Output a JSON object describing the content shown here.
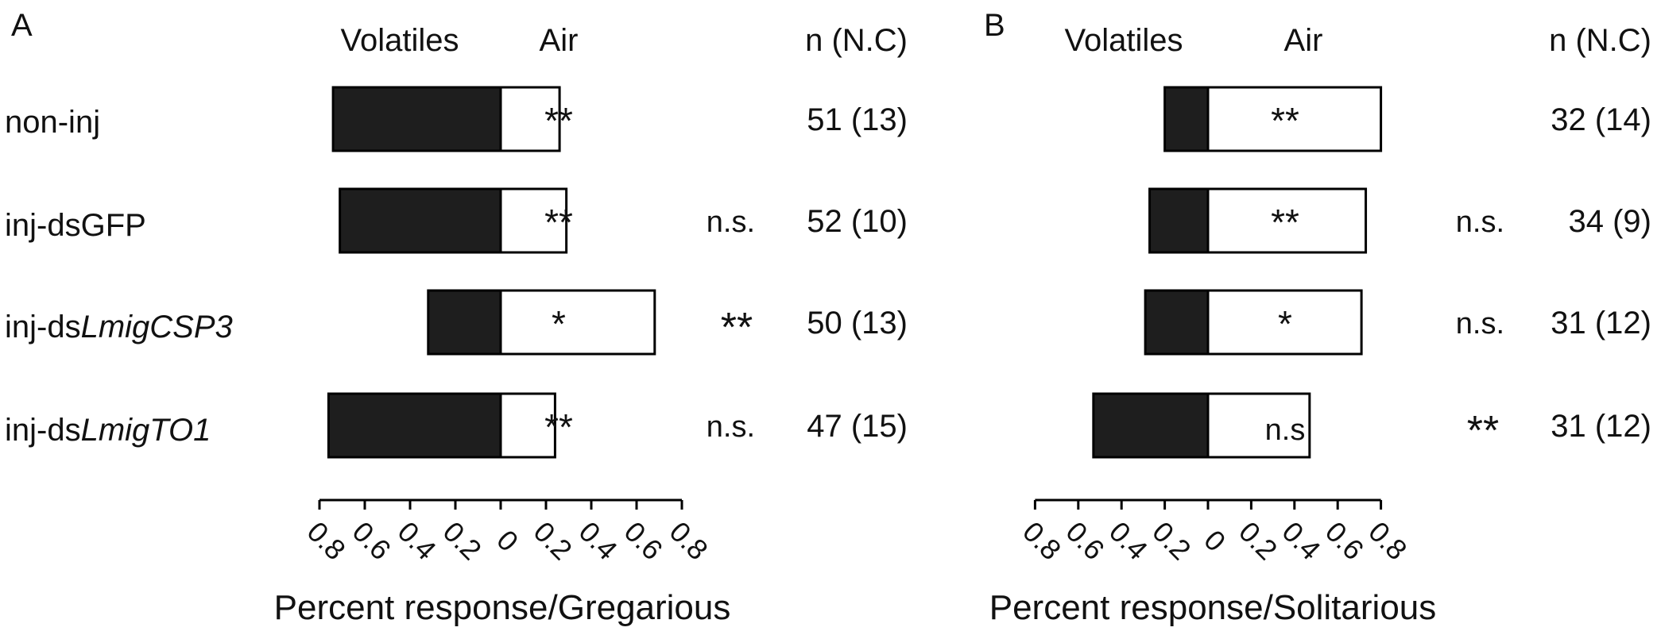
{
  "chart_data": [
    {
      "type": "bar",
      "panel_label": "A",
      "categories": [
        "non-inj",
        "inj-dsGFP",
        "inj-dsLmigCSP3",
        "inj-dsLmigTO1"
      ],
      "category_parts": [
        {
          "plain": "non-inj",
          "italic": ""
        },
        {
          "plain": "inj-dsGFP",
          "italic": ""
        },
        {
          "plain": "inj-ds",
          "italic": "LmigCSP3"
        },
        {
          "plain": "inj-ds",
          "italic": "LmigTO1"
        }
      ],
      "series": [
        {
          "name": "Volatiles",
          "values": [
            0.74,
            0.71,
            0.32,
            0.76
          ]
        },
        {
          "name": "Air",
          "values": [
            0.26,
            0.29,
            0.68,
            0.24
          ]
        }
      ],
      "bar_significance": [
        "**",
        "**",
        "*",
        "**"
      ],
      "group_comparison": [
        "",
        "n.s.",
        "**",
        "n.s."
      ],
      "n_values": [
        "51 (13)",
        "52 (10)",
        "50 (13)",
        "47 (15)"
      ],
      "header_left": "Volatiles",
      "header_right": "Air",
      "header_n": "n (N.C)",
      "xlabel": "Percent response/Gregarious",
      "xlim": [
        -0.8,
        0.8
      ],
      "tick_labels": [
        "0.8",
        "0.6",
        "0.4",
        "0.2",
        "0",
        "0.2",
        "0.4",
        "0.6",
        "0.8"
      ]
    },
    {
      "type": "bar",
      "panel_label": "B",
      "categories": [
        "non-inj",
        "inj-dsGFP",
        "inj-dsLmigCSP3",
        "inj-dsLmigTO1"
      ],
      "series": [
        {
          "name": "Volatiles",
          "values": [
            0.2,
            0.27,
            0.29,
            0.53
          ]
        },
        {
          "name": "Air",
          "values": [
            0.8,
            0.73,
            0.71,
            0.47
          ]
        }
      ],
      "bar_significance": [
        "**",
        "**",
        "*",
        "n.s"
      ],
      "group_comparison": [
        "",
        "n.s.",
        "n.s.",
        "**"
      ],
      "n_values": [
        "32 (14)",
        "34 (9)",
        "31 (12)",
        "31 (12)"
      ],
      "header_left": "Volatiles",
      "header_right": "Air",
      "header_n": "n (N.C)",
      "xlabel": "Percent response/Solitarious",
      "xlim": [
        -0.8,
        0.8
      ],
      "tick_labels": [
        "0.8",
        "0.6",
        "0.4",
        "0.2",
        "0",
        "0.2",
        "0.4",
        "0.6",
        "0.8"
      ]
    }
  ]
}
